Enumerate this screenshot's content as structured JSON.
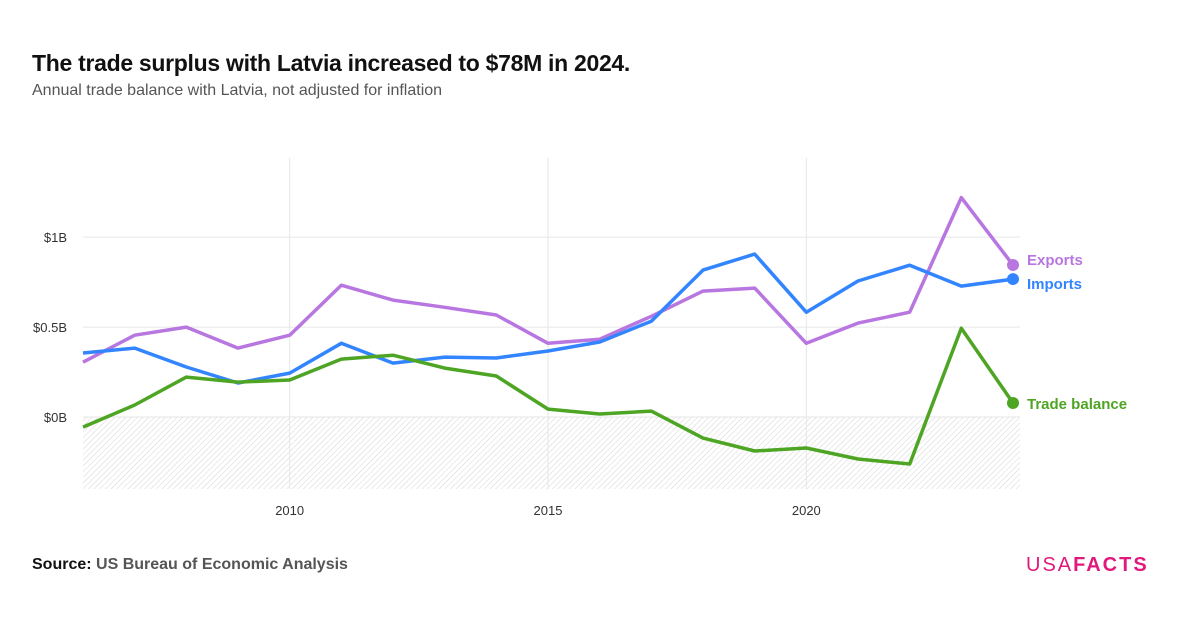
{
  "header": {
    "title": "The trade surplus with Latvia increased to $78M in 2024.",
    "subtitle": "Annual trade balance with Latvia, not adjusted for inflation"
  },
  "footer": {
    "source_label": "Source:",
    "source": "US Bureau of Economic Analysis",
    "logo_usa": "USA",
    "logo_facts": "FACTS"
  },
  "chart_data": {
    "type": "line",
    "title": "The trade surplus with Latvia increased to $78M in 2024.",
    "subtitle": "Annual trade balance with Latvia, not adjusted for inflation",
    "xlabel": "",
    "ylabel": "",
    "x": [
      2006,
      2007,
      2008,
      2009,
      2010,
      2011,
      2012,
      2013,
      2014,
      2015,
      2016,
      2017,
      2018,
      2019,
      2020,
      2021,
      2022,
      2023,
      2024
    ],
    "xlim": [
      2006,
      2024
    ],
    "ylim": [
      -0.4,
      1.44
    ],
    "x_ticks": [
      {
        "value": 2010,
        "label": "2010"
      },
      {
        "value": 2015,
        "label": "2015"
      },
      {
        "value": 2020,
        "label": "2020"
      }
    ],
    "y_ticks": [
      {
        "value": 0,
        "label": "$0B"
      },
      {
        "value": 0.5,
        "label": "$0.5B"
      },
      {
        "value": 1,
        "label": "$1B"
      }
    ],
    "grid": true,
    "negative_region_hatched": true,
    "legend": "end-of-line labels",
    "series": [
      {
        "name": "Exports",
        "color": "#b877e0",
        "values": [
          0.305,
          0.455,
          0.5,
          0.383,
          0.455,
          0.733,
          0.65,
          0.61,
          0.567,
          0.41,
          0.433,
          0.56,
          0.7,
          0.717,
          0.41,
          0.522,
          0.583,
          1.22,
          0.845
        ]
      },
      {
        "name": "Imports",
        "color": "#3385ff",
        "values": [
          0.356,
          0.383,
          0.278,
          0.189,
          0.244,
          0.41,
          0.3,
          0.333,
          0.328,
          0.367,
          0.417,
          0.533,
          0.817,
          0.906,
          0.583,
          0.756,
          0.844,
          0.728,
          0.767
        ]
      },
      {
        "name": "Trade balance",
        "color": "#4ea524",
        "values": [
          -0.056,
          0.067,
          0.222,
          0.194,
          0.206,
          0.322,
          0.344,
          0.272,
          0.228,
          0.044,
          0.017,
          0.033,
          -0.117,
          -0.189,
          -0.172,
          -0.233,
          -0.261,
          0.494,
          0.078
        ]
      }
    ]
  }
}
